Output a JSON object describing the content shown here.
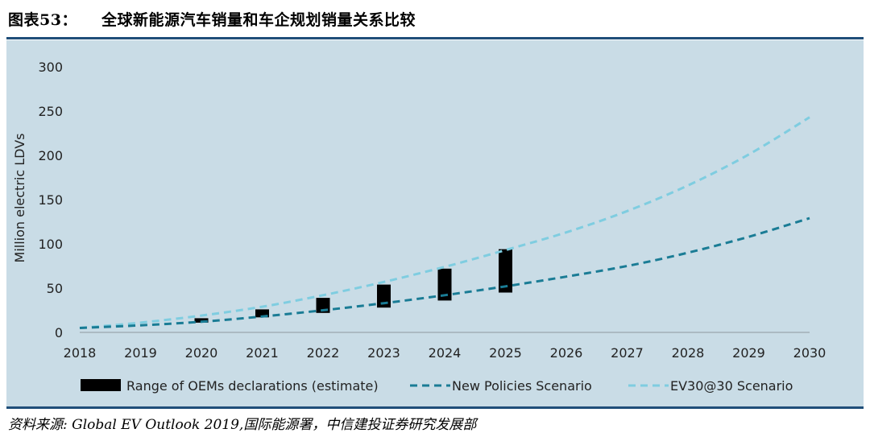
{
  "figure": {
    "label": "图表53：",
    "title": "全球新能源汽车销量和车企规划销量关系比较"
  },
  "source": "资料来源: Global EV Outlook 2019,国际能源署，中信建投证券研究发展部",
  "colors": {
    "plot_background": "#c9dce6",
    "new_policies": "#1a7c95",
    "ev3030": "#7fcde0",
    "range_bar": "#000000",
    "rule": "#1f4e79"
  },
  "chart_data": {
    "type": "line",
    "title": "",
    "xlabel": "",
    "ylabel": "Million electric LDVs",
    "x": [
      2018,
      2019,
      2020,
      2021,
      2022,
      2023,
      2024,
      2025,
      2026,
      2027,
      2028,
      2029,
      2030
    ],
    "x_tick_labels": [
      "2018",
      "2019",
      "2020",
      "2021",
      "2022",
      "2023",
      "2024",
      "2025",
      "2026",
      "2027",
      "2028",
      "2029",
      "2030"
    ],
    "ylim": [
      0,
      300
    ],
    "y_ticks": [
      0,
      50,
      100,
      150,
      200,
      250,
      300
    ],
    "y_tick_labels": [
      "0",
      "50",
      "100",
      "150",
      "200",
      "250",
      "300"
    ],
    "grid": false,
    "legend_position": "bottom",
    "series": [
      {
        "name": "New Policies Scenario",
        "style": "dashed",
        "values": [
          5,
          8,
          12,
          18,
          25,
          33,
          42,
          52,
          63,
          75,
          90,
          108,
          129
        ]
      },
      {
        "name": "EV30@30 Scenario",
        "style": "dashed",
        "values": [
          5,
          11,
          19,
          29,
          42,
          57,
          74,
          93,
          113,
          137,
          166,
          201,
          243
        ]
      }
    ],
    "ranges": {
      "name": "Range of OEMs declarations (estimate)",
      "x": [
        2020,
        2021,
        2022,
        2023,
        2024,
        2025
      ],
      "low": [
        11,
        17,
        22,
        28,
        36,
        45
      ],
      "high": [
        16,
        26,
        39,
        54,
        72,
        94
      ]
    }
  }
}
